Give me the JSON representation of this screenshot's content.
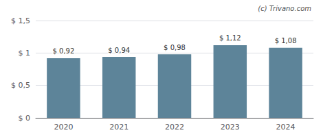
{
  "chart_data": {
    "type": "bar",
    "categories": [
      "2020",
      "2021",
      "2022",
      "2023",
      "2024"
    ],
    "values": [
      0.92,
      0.94,
      0.98,
      1.12,
      1.08
    ],
    "value_labels": [
      "$ 0,92",
      "$ 0,94",
      "$ 0,98",
      "$ 1,12",
      "$ 1,08"
    ],
    "data_labels": true,
    "color": "#5d8499",
    "ylim": [
      0,
      1.5
    ],
    "yticks": [
      {
        "value": 0,
        "label": "$ 0"
      },
      {
        "value": 0.5,
        "label": "$ 0,5"
      },
      {
        "value": 1.0,
        "label": "$ 1"
      },
      {
        "value": 1.5,
        "label": "$ 1,5"
      }
    ],
    "grid": true,
    "annotations": [
      "(c) Trivano.com"
    ]
  }
}
